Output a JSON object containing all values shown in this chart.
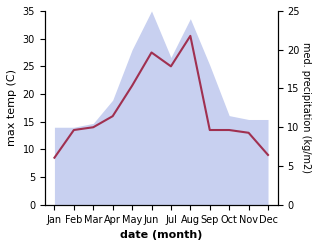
{
  "months": [
    "Jan",
    "Feb",
    "Mar",
    "Apr",
    "May",
    "Jun",
    "Jul",
    "Aug",
    "Sep",
    "Oct",
    "Nov",
    "Dec"
  ],
  "x": [
    1,
    2,
    3,
    4,
    5,
    6,
    7,
    8,
    9,
    10,
    11,
    12
  ],
  "temperature": [
    8.5,
    13.5,
    14.0,
    16.0,
    21.5,
    27.5,
    25.0,
    30.5,
    13.5,
    13.5,
    13.0,
    9.0
  ],
  "precipitation": [
    10.0,
    10.0,
    10.5,
    13.5,
    20.0,
    25.0,
    19.0,
    24.0,
    18.0,
    11.5,
    11.0,
    11.0
  ],
  "temp_color": "#a03050",
  "precip_fill_color": "#c8d0f0",
  "temp_ylim": [
    0,
    35
  ],
  "precip_ylim": [
    0,
    25
  ],
  "temp_yticks": [
    0,
    5,
    10,
    15,
    20,
    25,
    30,
    35
  ],
  "precip_yticks": [
    0,
    5,
    10,
    15,
    20,
    25
  ],
  "xlabel": "date (month)",
  "ylabel_left": "max temp (C)",
  "ylabel_right": "med. precipitation (kg/m2)",
  "bg_color": "#ffffff"
}
